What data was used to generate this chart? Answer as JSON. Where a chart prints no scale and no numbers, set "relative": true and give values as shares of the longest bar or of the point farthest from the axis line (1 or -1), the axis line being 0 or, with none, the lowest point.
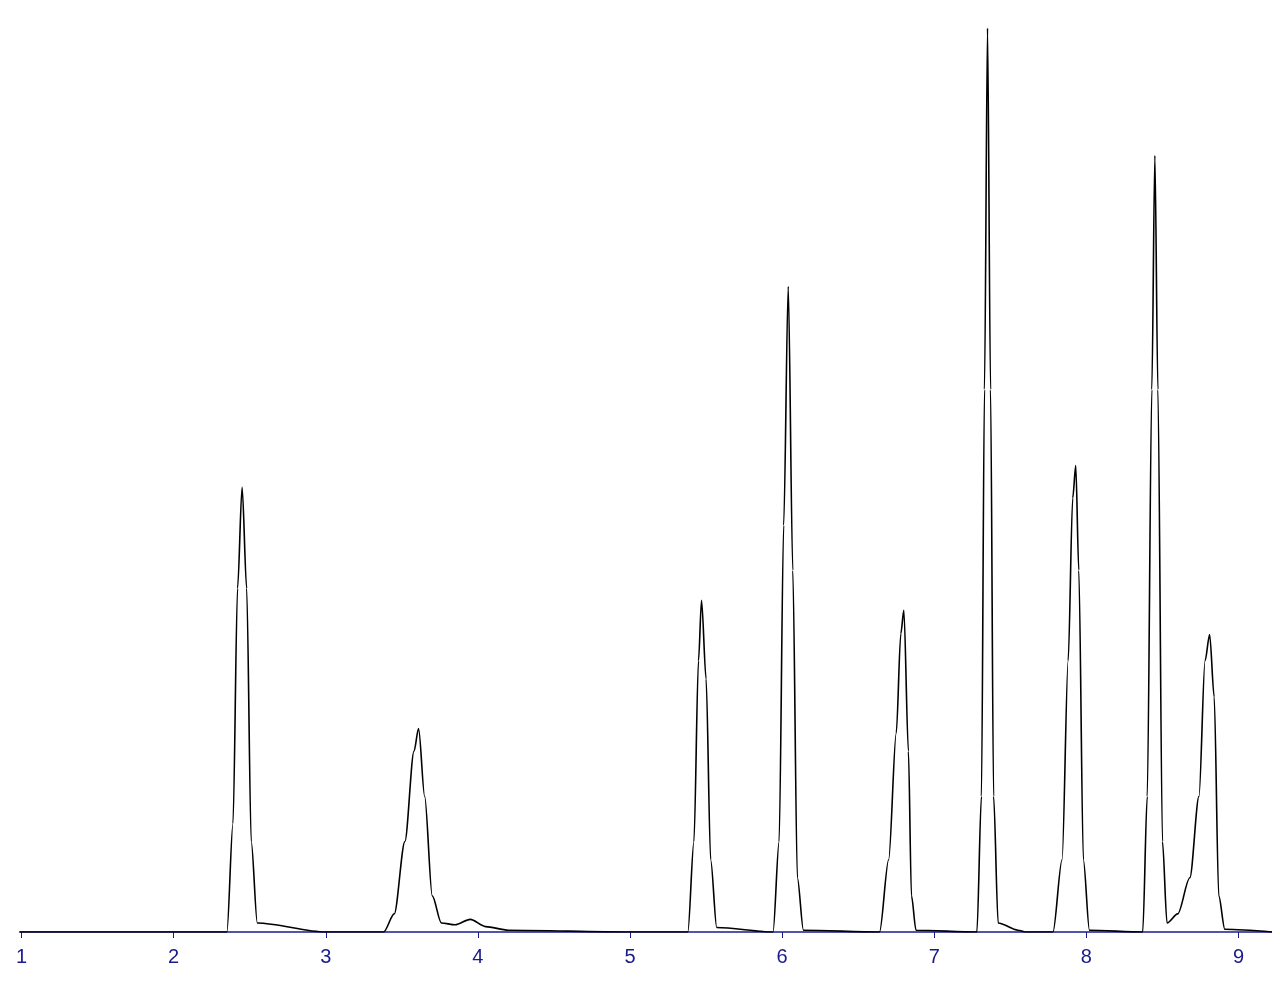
{
  "chart_data": {
    "type": "line",
    "relative": true,
    "xlim": [
      0.99,
      9.22
    ],
    "xticks": [
      1,
      2,
      3,
      4,
      5,
      6,
      7,
      8,
      9
    ],
    "marker": "none",
    "line_style": "solid",
    "series": [
      {
        "color": "#000000",
        "x": [
          0.99,
          2.2,
          2.35,
          2.39,
          2.42,
          2.45,
          2.48,
          2.51,
          2.55,
          3.0,
          3.38,
          3.45,
          3.52,
          3.58,
          3.61,
          3.65,
          3.7,
          3.76,
          3.85,
          3.95,
          4.05,
          4.2,
          5.0,
          5.38,
          5.42,
          5.45,
          5.47,
          5.5,
          5.53,
          5.57,
          5.94,
          5.98,
          6.01,
          6.04,
          6.07,
          6.1,
          6.14,
          6.64,
          6.7,
          6.75,
          6.78,
          6.8,
          6.83,
          6.85,
          6.88,
          7.28,
          7.31,
          7.33,
          7.35,
          7.37,
          7.39,
          7.42,
          7.55,
          7.6,
          7.78,
          7.84,
          7.88,
          7.91,
          7.93,
          7.95,
          7.98,
          8.02,
          8.37,
          8.4,
          8.43,
          8.45,
          8.47,
          8.5,
          8.53,
          8.6,
          8.68,
          8.74,
          8.78,
          8.81,
          8.84,
          8.87,
          8.91,
          9.22
        ],
        "values": [
          0,
          0,
          0,
          0.12,
          0.38,
          0.492,
          0.38,
          0.1,
          0.01,
          0,
          0,
          0.02,
          0.1,
          0.2,
          0.225,
          0.15,
          0.04,
          0.01,
          0.008,
          0.014,
          0.006,
          0.002,
          0,
          0,
          0.1,
          0.3,
          0.367,
          0.28,
          0.08,
          0.005,
          0,
          0.1,
          0.45,
          0.714,
          0.4,
          0.06,
          0.002,
          0,
          0.08,
          0.22,
          0.33,
          0.356,
          0.2,
          0.04,
          0.002,
          0,
          0.15,
          0.6,
          1,
          0.6,
          0.15,
          0.01,
          0.002,
          0,
          0,
          0.08,
          0.3,
          0.48,
          0.516,
          0.4,
          0.08,
          0.002,
          0,
          0.15,
          0.6,
          0.859,
          0.6,
          0.1,
          0.01,
          0.02,
          0.06,
          0.15,
          0.3,
          0.329,
          0.26,
          0.04,
          0.003,
          0
        ]
      }
    ]
  }
}
